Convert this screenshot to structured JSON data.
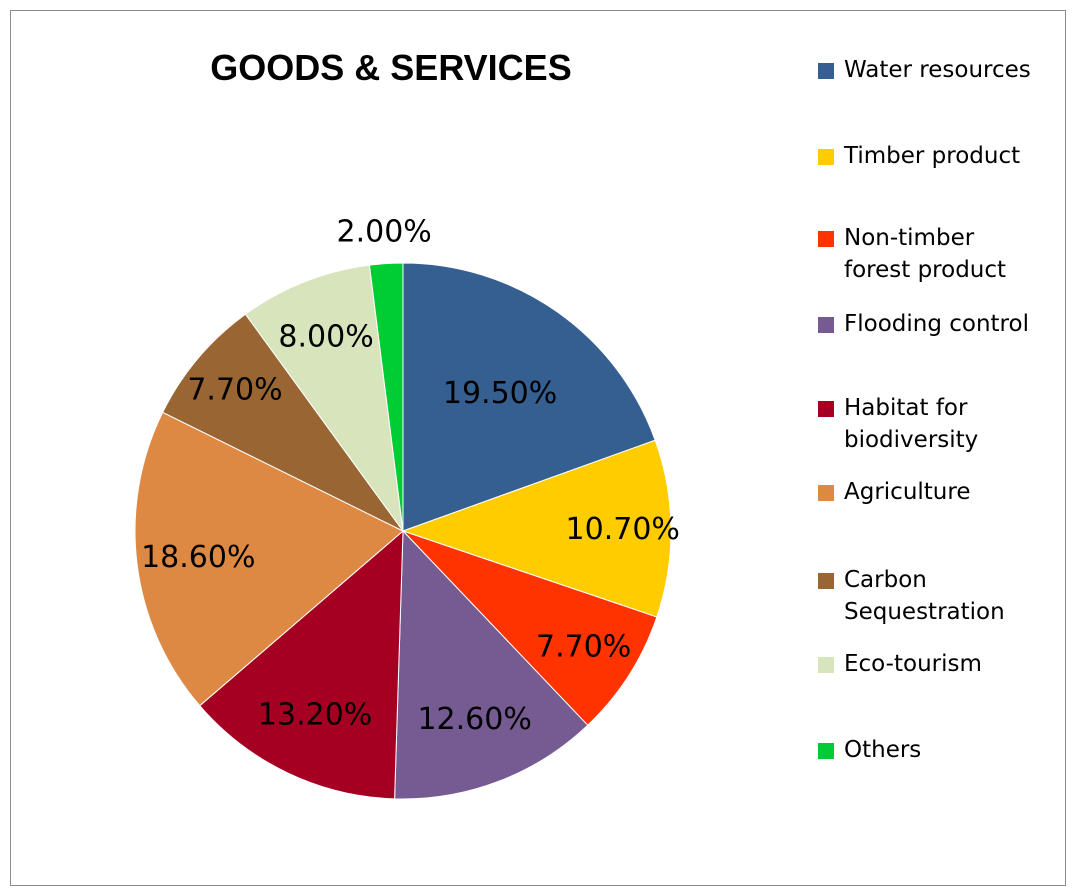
{
  "chart_data": {
    "type": "pie",
    "title": "GOODS & SERVICES",
    "legend_position": "right",
    "slices": [
      {
        "name": "Water resources",
        "value": 19.5,
        "label": "19.50%",
        "color": "#355F91"
      },
      {
        "name": "Timber product",
        "value": 10.7,
        "label": "10.70%",
        "color": "#FFCC00"
      },
      {
        "name": "Non-timber forest product",
        "value": 7.7,
        "label": "7.70%",
        "color": "#FF3300"
      },
      {
        "name": "Flooding control",
        "value": 12.6,
        "label": "12.60%",
        "color": "#765A92"
      },
      {
        "name": "Habitat for biodiversity",
        "value": 13.2,
        "label": "13.20%",
        "color": "#A50021"
      },
      {
        "name": "Agriculture",
        "value": 18.6,
        "label": "18.60%",
        "color": "#DE8943"
      },
      {
        "name": "Carbon Sequestration",
        "value": 7.7,
        "label": "7.70%",
        "color": "#996633"
      },
      {
        "name": "Eco-tourism",
        "value": 8.0,
        "label": "8.00%",
        "color": "#D8E4BC"
      },
      {
        "name": "Others",
        "value": 2.0,
        "label": "2.00%",
        "color": "#00CC33"
      }
    ]
  }
}
